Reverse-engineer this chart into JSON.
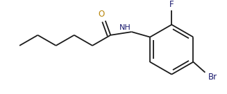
{
  "bg_color": "#ffffff",
  "bond_color": "#1a1a1a",
  "atom_colors": {
    "O": "#b8860b",
    "N": "#1a1a6e",
    "F": "#1a1a6e",
    "Br": "#1a1a6e"
  },
  "fig_width": 3.27,
  "fig_height": 1.36,
  "dpi": 100,
  "font_size_atoms": 8.5,
  "font_size_nh": 8.0
}
